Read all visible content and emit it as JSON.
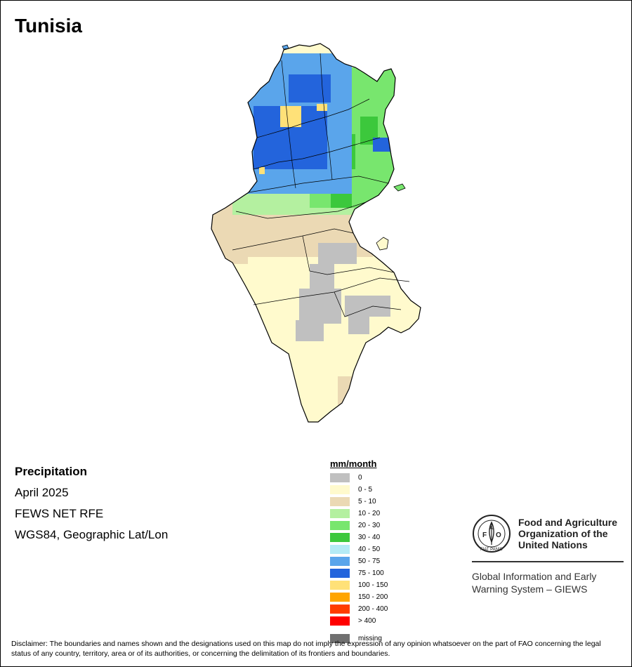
{
  "title": "Tunisia",
  "info": {
    "heading": "Precipitation",
    "period": "April 2025",
    "source": "FEWS NET RFE",
    "projection": "WGS84, Geographic Lat/Lon"
  },
  "legend": {
    "title": "mm/month",
    "classes": [
      {
        "label": "0",
        "color": "#c0c0c0"
      },
      {
        "label": "0 - 5",
        "color": "#fffacd"
      },
      {
        "label": "5 - 10",
        "color": "#ebd9b4"
      },
      {
        "label": "10 - 20",
        "color": "#b4f0a0"
      },
      {
        "label": "20 - 30",
        "color": "#78e66e"
      },
      {
        "label": "30 - 40",
        "color": "#3cc83c"
      },
      {
        "label": "40 - 50",
        "color": "#b4ebf5"
      },
      {
        "label": "50 - 75",
        "color": "#5aa5eb"
      },
      {
        "label": "75 - 100",
        "color": "#2364dc"
      },
      {
        "label": "100 - 150",
        "color": "#ffe178"
      },
      {
        "label": "150 - 200",
        "color": "#ffa500"
      },
      {
        "label": "200 - 400",
        "color": "#ff3c00"
      },
      {
        "label": "> 400",
        "color": "#ff0000"
      }
    ],
    "missing": {
      "label": "missing",
      "color": "#707070"
    }
  },
  "organization": {
    "logo_text": "FAO",
    "logo_motto": "FIAT PANIS",
    "name_line1": "Food and Agriculture",
    "name_line2": "Organization of the",
    "name_line3": "United Nations",
    "system_line1": "Global Information and Early",
    "system_line2": "Warning System – GIEWS"
  },
  "disclaimer": "Disclaimer: The boundaries and names shown and the designations used on this map do not imply the expression of any opinion whatsoever on the part of FAO concerning the legal status of any country, territory, area or of its authorities, or concerning the delimitation of its frontiers and boundaries."
}
